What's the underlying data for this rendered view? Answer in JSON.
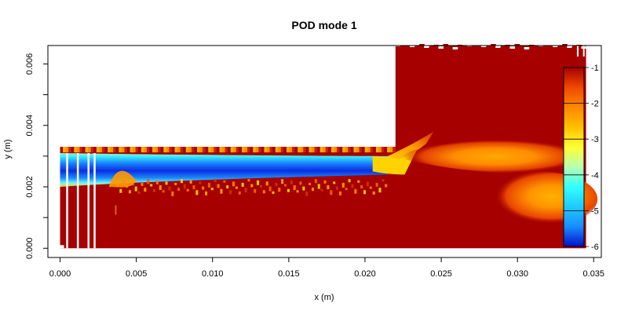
{
  "chart_data": {
    "type": "heatmap",
    "title": "POD mode 1",
    "xlabel": "x (m)",
    "ylabel": "y (m)",
    "xlim": [
      -0.0008,
      0.0355
    ],
    "ylim": [
      -0.0003,
      0.0066
    ],
    "x_ticks": [
      "0.000",
      "0.005",
      "0.010",
      "0.015",
      "0.020",
      "0.025",
      "0.030",
      "0.035"
    ],
    "x_tick_values": [
      0.0,
      0.005,
      0.01,
      0.015,
      0.02,
      0.025,
      0.03,
      0.035
    ],
    "y_ticks": [
      "0.000",
      "0.002",
      "0.004",
      "0.006"
    ],
    "y_tick_values": [
      0.0,
      0.002,
      0.004,
      0.006
    ],
    "y_minor_tick_values": [
      0.001,
      0.003,
      0.005
    ],
    "domain": {
      "step_x": 0.022,
      "inlet_y_range": [
        0.0,
        0.0033
      ],
      "outlet_y_range": [
        0.0,
        0.0066
      ],
      "x_range": [
        0.0,
        0.0345
      ]
    },
    "field_background_value": -1,
    "colorbar": {
      "range": [
        -6,
        -1
      ],
      "tick_labels": [
        "-1",
        "-2",
        "-3",
        "-4",
        "-5",
        "-6"
      ],
      "tick_values": [
        -1,
        -2,
        -3,
        -4,
        -5,
        -6
      ],
      "palette": [
        "#0010c8",
        "#1a8cff",
        "#1ecbff",
        "#33ffff",
        "#b7ffb0",
        "#ffff33",
        "#ffc000",
        "#ff8800",
        "#f04800",
        "#a60000"
      ]
    },
    "features": [
      {
        "name": "inlet jet core",
        "x_range": [
          0.0,
          0.0235
        ],
        "y_center": 0.0027,
        "min_value": -6
      },
      {
        "name": "shear-layer tail",
        "x_range": [
          0.022,
          0.0245
        ],
        "y_range": [
          0.003,
          0.0037
        ],
        "min_value": -2
      },
      {
        "name": "upper downstream lobe",
        "x_range": [
          0.024,
          0.0345
        ],
        "y_center": 0.003,
        "min_value": -2.1
      },
      {
        "name": "lower downstream lobe",
        "x_range": [
          0.027,
          0.0345
        ],
        "y_center": 0.0015,
        "min_value": -2.2
      }
    ]
  }
}
